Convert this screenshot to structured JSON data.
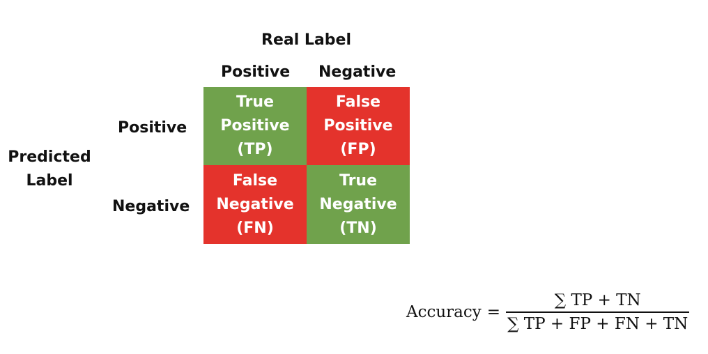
{
  "header": {
    "real_label": "Real Label",
    "columns": [
      "Positive",
      "Negative"
    ]
  },
  "rows": {
    "predicted_label": "Predicted\nLabel",
    "labels": [
      "Positive",
      "Negative"
    ]
  },
  "matrix": {
    "tp": "True\nPositive\n(TP)",
    "fp": "False\nPositive\n(FP)",
    "fn": "False\nNegative\n(FN)",
    "tn": "True\nNegative\n(TN)"
  },
  "colors": {
    "correct": "#70a24c",
    "incorrect": "#e4332c"
  },
  "formula": {
    "lhs": "Accuracy",
    "equals": "=",
    "numerator": "∑ TP + TN",
    "denominator": "∑ TP + FP + FN + TN"
  }
}
